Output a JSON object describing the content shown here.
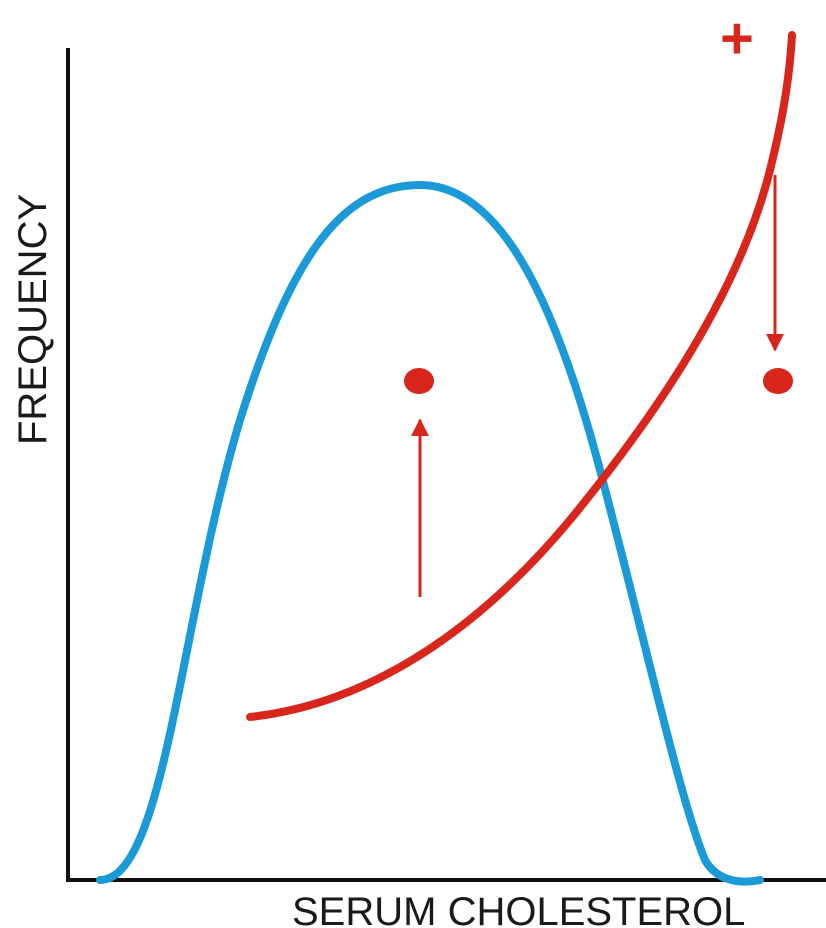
{
  "diagram": {
    "x_axis_label": "SERUM CHOLESTEROL",
    "y_axis_label": "FREQUENCY",
    "plus_marker": "+",
    "colors": {
      "axis": "#111111",
      "distribution": "#1b9ad8",
      "risk": "#d9261c",
      "text": "#1a1a1a"
    },
    "elements": [
      "y-axis-line",
      "x-axis-line",
      "frequency-distribution-curve",
      "risk-curve",
      "arrow-up",
      "arrow-down",
      "dot-left",
      "dot-right"
    ]
  }
}
